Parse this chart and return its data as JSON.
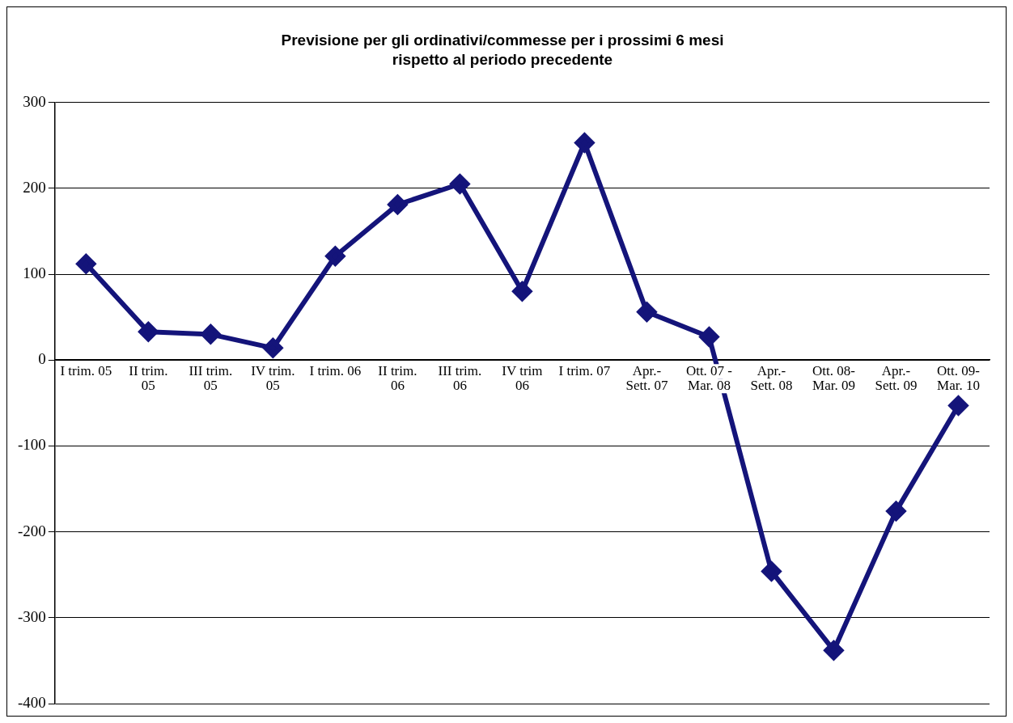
{
  "chart_data": {
    "type": "line",
    "title": "Previsione per gli ordinativi/commesse per i prossimi 6 mesi",
    "subtitle": "rispetto al periodo precedente",
    "categories": [
      "I trim. 05",
      "II trim. 05",
      "III trim. 05",
      "IV trim. 05",
      "I trim. 06",
      "II trim. 06",
      "III trim. 06",
      "IV trim 06",
      "I trim. 07",
      "Apr.-Sett. 07",
      "Ott. 07 - Mar. 08",
      "Apr.-Sett. 08",
      "Ott. 08-Mar. 09",
      "Apr.-Sett. 09",
      "Ott. 09-Mar. 10"
    ],
    "series": [
      {
        "color": "#14147a",
        "values": [
          112,
          33,
          30,
          14,
          121,
          181,
          205,
          80,
          253,
          56,
          27,
          -246,
          -338,
          -176,
          -53
        ]
      }
    ],
    "ylim": [
      -400,
      300
    ],
    "yticks": [
      -400,
      -300,
      -200,
      -100,
      0,
      100,
      200,
      300
    ],
    "grid": "y",
    "legend": false,
    "marker": "diamond",
    "line_style": "solid"
  }
}
